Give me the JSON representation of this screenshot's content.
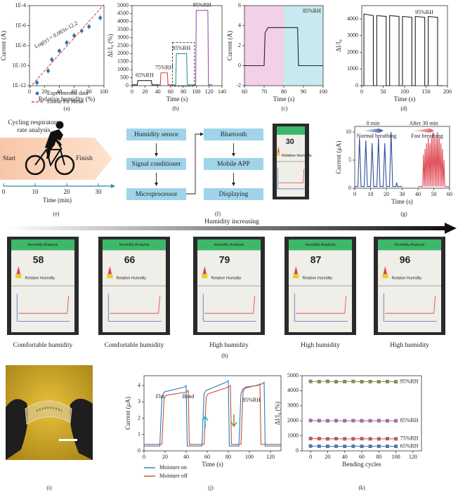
{
  "chart_data": [
    {
      "type": "scatter",
      "ylog": true,
      "xlim": [
        0,
        100
      ],
      "ylim": [
        1e-12,
        0.0001
      ],
      "xticks": [
        0,
        20,
        40,
        60,
        80,
        100
      ],
      "yticks": [
        {
          "value": 0.0001,
          "label": "1E-4"
        },
        {
          "value": 1e-06,
          "label": "1E-6"
        },
        {
          "value": 1e-08,
          "label": "1E-8"
        },
        {
          "value": 1e-10,
          "label": "1E-10"
        },
        {
          "value": 1e-12,
          "label": "1E-12"
        }
      ],
      "xlabel": "Relative humidity (%)",
      "ylabel": "Current (A)",
      "legend": true,
      "annotations": [
        "Log(y) = 0.083x-12.2"
      ],
      "series": [
        {
          "name": "Experimental data",
          "color": "#3a6fb0",
          "marker": true,
          "line": false,
          "x": [
            10,
            25,
            30,
            40,
            50,
            60,
            70,
            80,
            95
          ],
          "values": [
            2e-12,
            3e-11,
            4e-10,
            3e-09,
            2e-08,
            1e-07,
            3e-07,
            8e-07,
            6e-06
          ]
        },
        {
          "name": "Linear Fit Mean",
          "color": "#d9534f",
          "dash": true,
          "x": [
            0,
            100
          ],
          "values": [
            6.3e-13,
            0.000126
          ]
        }
      ]
    },
    {
      "type": "line",
      "xlim": [
        0,
        140
      ],
      "ylim": [
        0,
        5000
      ],
      "xticks": [
        0,
        20,
        40,
        60,
        80,
        100,
        120,
        140
      ],
      "yticks": [
        0,
        500,
        1000,
        1500,
        2000,
        2500,
        3000,
        3500,
        4000,
        4500,
        5000
      ],
      "xlabel": "Time (s)",
      "ylabel": "ΔI/I₀ (%)",
      "series": [
        {
          "name": "65%RH",
          "color": "#222222",
          "x": [
            0,
            8,
            9,
            30,
            31,
            42
          ],
          "values": [
            50,
            50,
            320,
            320,
            50,
            50
          ]
        },
        {
          "name": "75%RH",
          "color": "#e03a3a",
          "x": [
            42,
            44,
            45,
            55,
            56,
            65
          ],
          "values": [
            50,
            50,
            800,
            800,
            50,
            50
          ]
        },
        {
          "name": "85%RH",
          "color": "#2a9a9a",
          "x": [
            65,
            68,
            69,
            85,
            86,
            95
          ],
          "values": [
            50,
            50,
            2000,
            2000,
            50,
            50
          ]
        },
        {
          "name": "95%RH",
          "color": "#9b4fb0",
          "x": [
            95,
            99,
            100,
            118,
            119,
            125
          ],
          "values": [
            50,
            50,
            4700,
            4700,
            50,
            50
          ]
        }
      ]
    },
    {
      "type": "line",
      "xlim": [
        60,
        100
      ],
      "ylim": [
        -2,
        6
      ],
      "xticks": [
        60,
        70,
        80,
        90,
        100
      ],
      "yticks": [
        -2,
        0,
        2,
        4,
        6
      ],
      "xlabel": "Time (s)",
      "ylabel": "Current (A)",
      "annotations": [
        "85%RH"
      ],
      "bands": [
        {
          "from": 60,
          "to": 80,
          "color": "#f3d0ea"
        },
        {
          "from": 80,
          "to": 100,
          "color": "#c8e9ef"
        }
      ],
      "series": [
        {
          "color": "#222222",
          "x": [
            60,
            70,
            70.5,
            72,
            80,
            87,
            87.5,
            100
          ],
          "values": [
            0,
            0,
            3.3,
            3.8,
            3.8,
            3.8,
            0,
            0
          ]
        }
      ]
    },
    {
      "type": "line",
      "xlim": [
        0,
        200
      ],
      "ylim": [
        0,
        4800
      ],
      "xticks": [
        0,
        50,
        100,
        150,
        200
      ],
      "yticks": [
        0,
        1000,
        2000,
        3000,
        4000
      ],
      "xlabel": "Time (s)",
      "ylabel": "ΔI/I₀",
      "annotations": [
        "95%RH"
      ],
      "series": [
        {
          "color": "#222222",
          "x": [
            0,
            5,
            5,
            27,
            27,
            35,
            35,
            57,
            57,
            65,
            65,
            87,
            87,
            95,
            95,
            117,
            117,
            125,
            125,
            147,
            147,
            155,
            155,
            177,
            177,
            190
          ],
          "values": [
            0,
            0,
            4300,
            4200,
            0,
            0,
            4200,
            4150,
            0,
            0,
            4200,
            4150,
            0,
            0,
            4150,
            4100,
            0,
            0,
            4150,
            4100,
            0,
            0,
            4150,
            4100,
            0,
            0
          ]
        }
      ]
    },
    {
      "type": "axis",
      "xlim": [
        0,
        34
      ],
      "xticks": [
        0,
        10,
        20,
        30
      ],
      "xlabel": "Time (min)"
    },
    {
      "type": "line",
      "xlim": [
        0,
        60
      ],
      "ylim": [
        0,
        11
      ],
      "xticks": [
        0,
        10,
        20,
        30,
        40,
        50,
        60
      ],
      "yticks": [
        0,
        5,
        10
      ],
      "xlabel": "Time (s)",
      "ylabel": "Current (μA)",
      "annotations": [
        "0 min",
        "After 30 min",
        "Normal breathing",
        "Fast breathing"
      ],
      "series": [
        {
          "color": "#2f4f9a",
          "x": [
            0,
            2,
            3,
            4,
            6,
            7,
            8,
            10,
            11,
            12,
            14,
            15,
            16,
            18,
            19,
            20,
            22,
            23,
            24,
            26,
            26.5,
            27,
            30
          ],
          "values": [
            0.3,
            0.3,
            9,
            0.3,
            0.3,
            8.5,
            0.3,
            0.3,
            8,
            0.3,
            0.3,
            9,
            0.3,
            0.3,
            8,
            0.3,
            0.3,
            10,
            0.3,
            0.3,
            1,
            0.3,
            0.3
          ]
        },
        {
          "color": "#e0505a",
          "x": [
            40,
            43,
            43.5,
            44,
            44.5,
            45,
            45.5,
            46,
            46.5,
            47,
            47.5,
            48,
            48.5,
            49,
            49.5,
            50,
            50.5,
            51,
            51.5,
            52,
            52.5,
            53,
            53.5,
            54,
            54.5,
            55,
            55.5,
            56,
            56.5,
            57,
            60
          ],
          "values": [
            0.3,
            0.3,
            6,
            0.3,
            7,
            0.3,
            8,
            0.3,
            9,
            0.3,
            8,
            0.3,
            9,
            0.3,
            10,
            0.3,
            9,
            0.3,
            9,
            0.3,
            10,
            0.3,
            9,
            0.3,
            8,
            0.3,
            7,
            0.3,
            5,
            0.3,
            0.3
          ]
        }
      ]
    },
    {
      "type": "line",
      "xlim": [
        0,
        130
      ],
      "ylim": [
        0,
        4.6
      ],
      "xticks": [
        0,
        20,
        40,
        60,
        80,
        100,
        120
      ],
      "yticks": [
        0,
        1,
        2,
        3,
        4
      ],
      "xlabel": "Time (s)",
      "ylabel": "Current (μA)",
      "legend": true,
      "annotations": [
        "Flat",
        "Bend",
        "85%RH"
      ],
      "series": [
        {
          "name": "Moisture on",
          "color": "#2b7bb9",
          "x": [
            0,
            15,
            17,
            19,
            38,
            40,
            41,
            55,
            57,
            59,
            78,
            80,
            81,
            90,
            92,
            94,
            112,
            114,
            115,
            130
          ],
          "values": [
            0.3,
            0.3,
            3.3,
            3.6,
            3.9,
            4.0,
            0.3,
            0.3,
            3.5,
            3.7,
            4.2,
            4.3,
            0.3,
            0.3,
            3.5,
            3.8,
            4.1,
            4.2,
            0.3,
            0.3
          ]
        },
        {
          "name": "Moisture off",
          "color": "#c8503c",
          "x": [
            0,
            17,
            19,
            21,
            40,
            42,
            43,
            57,
            59,
            61,
            80,
            82,
            83,
            92,
            94,
            96,
            108,
            110,
            111,
            130
          ],
          "values": [
            0.4,
            0.4,
            3.2,
            3.4,
            3.6,
            3.7,
            0.4,
            0.4,
            3.3,
            3.5,
            3.9,
            4.0,
            0.4,
            0.4,
            3.6,
            3.9,
            4.0,
            4.1,
            0.4,
            0.4
          ]
        }
      ]
    },
    {
      "type": "line",
      "xlim": [
        -10,
        130
      ],
      "ylim": [
        0,
        5000
      ],
      "xticks": [
        0,
        20,
        40,
        60,
        80,
        100,
        120
      ],
      "yticks": [
        0,
        1000,
        2000,
        3000,
        4000,
        5000
      ],
      "xlabel": "Bending cycles",
      "ylabel": "ΔI/I₀ (%)",
      "series": [
        {
          "name": "95%RH",
          "color": "#7e9a4a",
          "marker": true,
          "x": [
            0,
            10,
            20,
            30,
            40,
            50,
            60,
            70,
            80,
            90,
            100
          ],
          "values": [
            4620,
            4610,
            4620,
            4600,
            4610,
            4620,
            4600,
            4610,
            4600,
            4610,
            4600
          ]
        },
        {
          "name": "85%RH",
          "color": "#b06ab3",
          "marker": true,
          "x": [
            0,
            10,
            20,
            30,
            40,
            50,
            60,
            70,
            80,
            90,
            100
          ],
          "values": [
            2020,
            2010,
            2000,
            2010,
            2000,
            2010,
            2000,
            2000,
            2010,
            2000,
            2000
          ]
        },
        {
          "name": "75%RH",
          "color": "#d9534f",
          "marker": true,
          "x": [
            0,
            10,
            20,
            30,
            40,
            50,
            60,
            70,
            80,
            90,
            100
          ],
          "values": [
            820,
            810,
            800,
            810,
            800,
            800,
            810,
            800,
            800,
            810,
            800
          ]
        },
        {
          "name": "65%RH",
          "color": "#4a7ebb",
          "marker": true,
          "x": [
            0,
            10,
            20,
            30,
            40,
            50,
            60,
            70,
            80,
            90,
            100
          ],
          "values": [
            320,
            310,
            300,
            310,
            300,
            310,
            300,
            300,
            310,
            300,
            300
          ]
        }
      ]
    }
  ],
  "captions": [
    "(a)",
    "(b)",
    "(c)",
    "(d)",
    "(e)",
    "(f)",
    "(g)",
    "(h)",
    "(i)",
    "(j)",
    "(k)"
  ],
  "cycling": {
    "title": "Cycling respiratory rate analysis",
    "start": "Start",
    "finish": "Finish"
  },
  "flowchart": {
    "nodes": [
      "Humidity sensor",
      "Signal conditioner",
      "Microprocessor",
      "Bluetooth",
      "Mobile APP",
      "Displaying"
    ],
    "phone": {
      "value": 30,
      "label": "Relative Humidity"
    }
  },
  "humidity": {
    "title": "Humidity increasing",
    "screen_title": "Humidity Analysis",
    "screen_label": "Relative Humidity",
    "phones": [
      {
        "value": 58,
        "color": "#3aa84a",
        "label": "Comfortable humidity"
      },
      {
        "value": 66,
        "color": "#3aa84a",
        "label": "Comfortable humidity"
      },
      {
        "value": 79,
        "color": "#d8323c",
        "label": "High humidity"
      },
      {
        "value": 87,
        "color": "#d8323c",
        "label": "High humidity"
      },
      {
        "value": 96,
        "color": "#d8323c",
        "label": "High humidity"
      }
    ]
  }
}
